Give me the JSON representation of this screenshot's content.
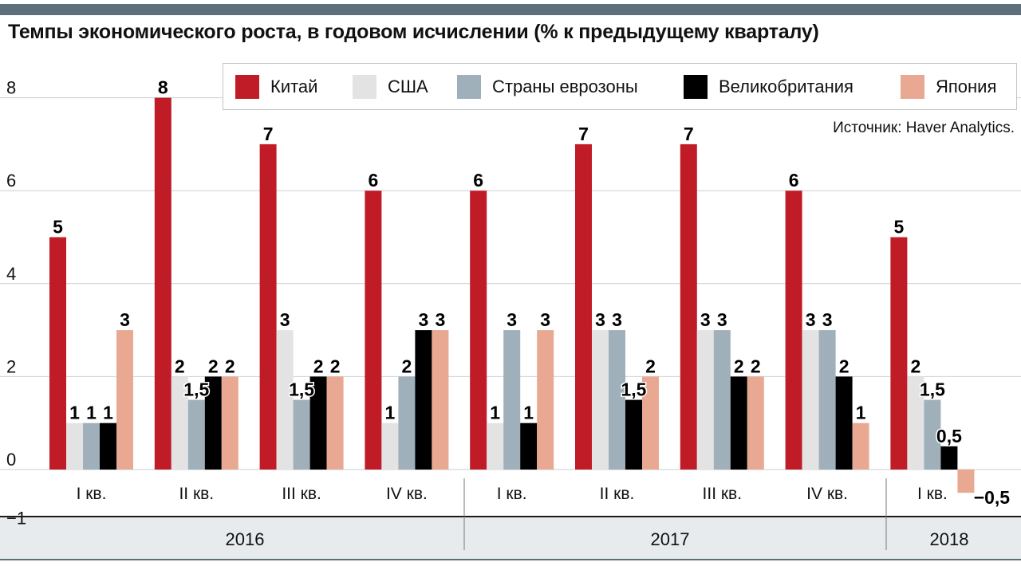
{
  "title": "Темпы экономического роста, в годовом исчислении (% к предыдущему кварталу)",
  "source": "Источник: Haver Analytics.",
  "colors": {
    "Китай": "#c01c28",
    "США": "#e3e3e3",
    "Страны еврозоны": "#9fb0ba",
    "Великобритания": "#000000",
    "Япония": "#e8a892",
    "topbar": "#5d707a",
    "axis_band": "#e7ebee"
  },
  "chart_data": {
    "type": "bar",
    "title": "Темпы экономического роста, в годовом исчислении (% к предыдущему кварталу)",
    "ylim": [
      -1,
      8.5
    ],
    "yticks": [
      "8",
      "6",
      "4",
      "2",
      "0",
      "−1"
    ],
    "ytick_values": [
      8,
      6,
      4,
      2,
      0,
      -1
    ],
    "grid": true,
    "legend_position": "top",
    "categories": [
      "I кв.",
      "II кв.",
      "III кв.",
      "IV кв.",
      "I кв.",
      "II кв.",
      "III кв.",
      "IV кв.",
      "I кв."
    ],
    "groups": [
      {
        "label": "2016",
        "span": 4
      },
      {
        "label": "2017",
        "span": 4
      },
      {
        "label": "2018",
        "span": 1
      }
    ],
    "series": [
      {
        "name": "Китай",
        "values": [
          5,
          8,
          7,
          6,
          6,
          7,
          7,
          6,
          5
        ],
        "labels": [
          "5",
          "8",
          "7",
          "6",
          "6",
          "7",
          "7",
          "6",
          "5"
        ]
      },
      {
        "name": "США",
        "values": [
          1,
          2,
          3,
          1,
          1,
          3,
          3,
          3,
          2
        ],
        "labels": [
          "1",
          "2",
          "3",
          "1",
          "1",
          "3",
          "3",
          "3",
          "2"
        ]
      },
      {
        "name": "Страны еврозоны",
        "values": [
          1,
          1.5,
          1.5,
          2,
          3,
          3,
          3,
          3,
          1.5
        ],
        "labels": [
          "1",
          "1,5",
          "1,5",
          "2",
          "3",
          "3",
          "3",
          "3",
          "1,5"
        ]
      },
      {
        "name": "Великобритания",
        "values": [
          1,
          2,
          2,
          3,
          1,
          1.5,
          2,
          2,
          0.5
        ],
        "labels": [
          "1",
          "2",
          "2",
          "3",
          "1",
          "1,5",
          "2",
          "2",
          "0,5"
        ]
      },
      {
        "name": "Япония",
        "values": [
          3,
          2,
          2,
          3,
          3,
          2,
          2,
          1,
          -0.5
        ],
        "labels": [
          "3",
          "2",
          "2",
          "3",
          "3",
          "2",
          "2",
          "1",
          "−0,5"
        ]
      }
    ]
  }
}
